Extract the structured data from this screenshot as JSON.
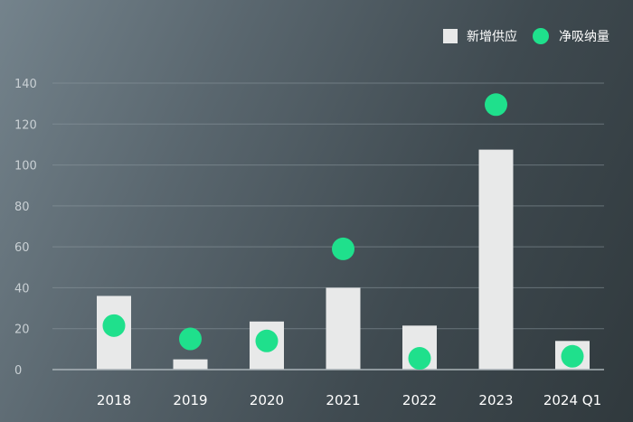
{
  "chart_data": {
    "type": "bar",
    "categories": [
      "2018",
      "2019",
      "2020",
      "2021",
      "2022",
      "2023",
      "2024 Q1"
    ],
    "series": [
      {
        "name": "新增供应",
        "type": "bar",
        "color": "#e8e9e9",
        "values": [
          36,
          5,
          23.5,
          40,
          21.5,
          107.5,
          14
        ]
      },
      {
        "name": "净吸纳量",
        "type": "scatter",
        "color": "#1fe08c",
        "values": [
          21.5,
          15,
          14,
          59,
          5.5,
          129.5,
          6.5
        ]
      }
    ],
    "ylim": [
      0,
      140
    ],
    "yticks": [
      0,
      20,
      40,
      60,
      80,
      100,
      120,
      140
    ],
    "grid": true,
    "legend_position": "top-right"
  }
}
